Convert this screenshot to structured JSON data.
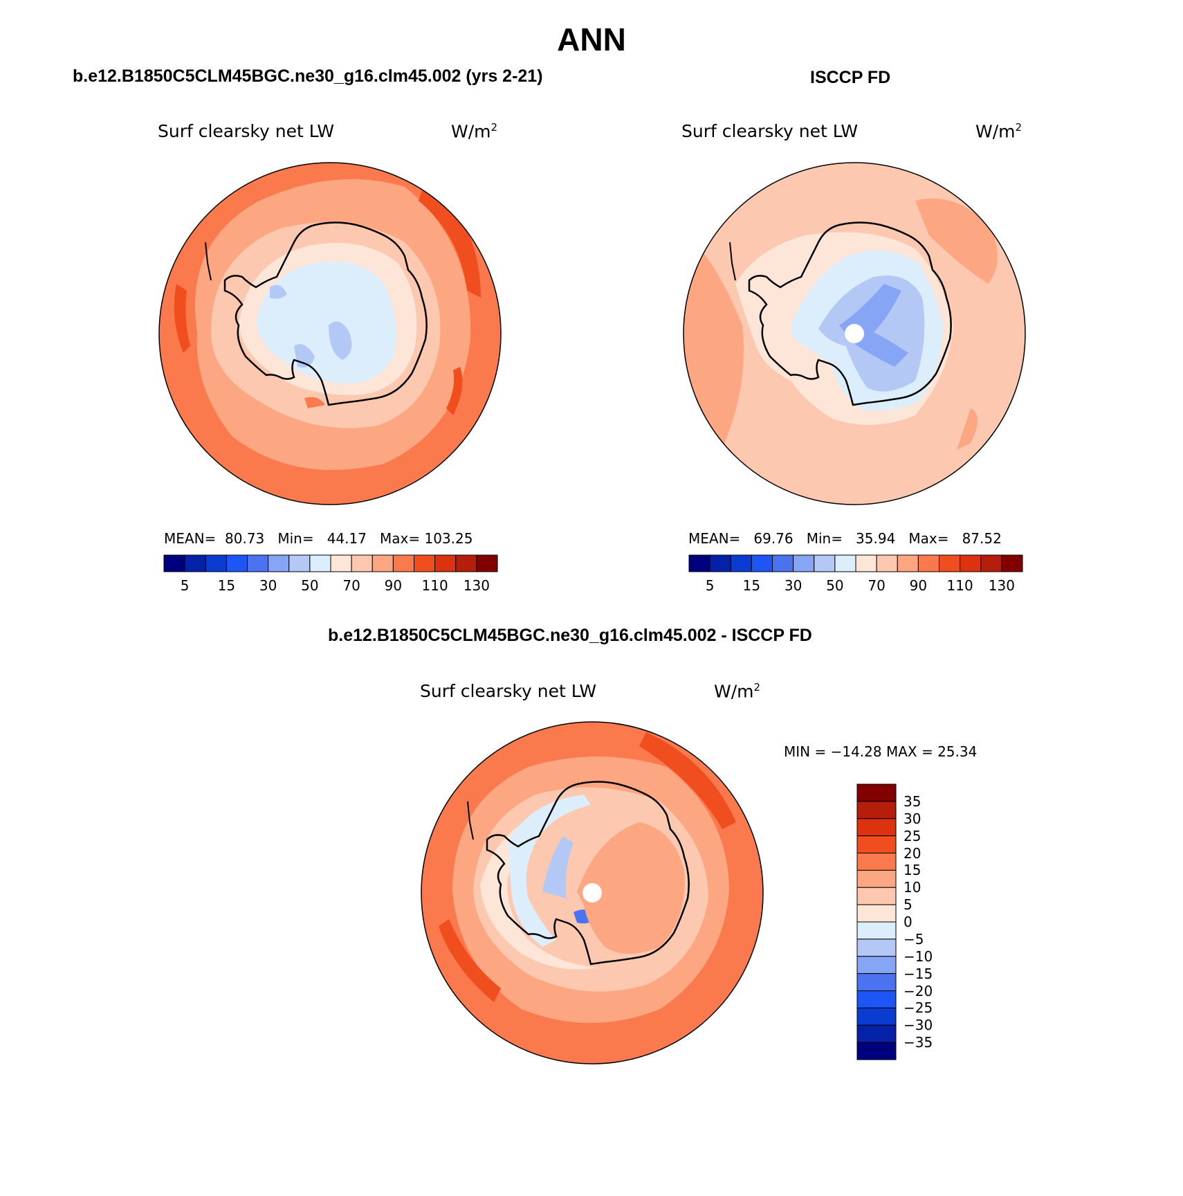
{
  "figure": {
    "title": "ANN"
  },
  "panels": [
    {
      "title": "b.e12.B1850C5CLM45BGC.ne30_g16.clm45.002 (yrs 2-21)",
      "variable": "Surf clearsky net LW",
      "units_base": "W/m",
      "units_exp": "2",
      "stats": {
        "mean_label": "MEAN=",
        "mean": "80.73",
        "min_label": "Min=",
        "min": "44.17",
        "max_label": "Max=",
        "max": "103.25"
      }
    },
    {
      "title": "ISCCP FD",
      "variable": "Surf clearsky net LW",
      "units_base": "W/m",
      "units_exp": "2",
      "stats": {
        "mean_label": "MEAN=",
        "mean": "69.76",
        "min_label": "Min=",
        "min": "35.94",
        "max_label": "Max=",
        "max": "87.52"
      }
    },
    {
      "title": "b.e12.B1850C5CLM45BGC.ne30_g16.clm45.002 - ISCCP FD",
      "variable": "Surf clearsky net LW",
      "units_base": "W/m",
      "units_exp": "2",
      "minmax_text": "MIN = −14.28 MAX =   25.34"
    }
  ],
  "abs_colorbar": {
    "colors": [
      "#00007f",
      "#0521a8",
      "#0a3cd2",
      "#1e55f5",
      "#4b73f0",
      "#87a5f5",
      "#b4c8f5",
      "#dceefc",
      "#fde6d7",
      "#fcc8b0",
      "#fca782",
      "#fa7a4e",
      "#f04e1e",
      "#dc3210",
      "#b41e0a",
      "#820000"
    ],
    "tick_labels": [
      "5",
      "15",
      "30",
      "50",
      "70",
      "90",
      "110",
      "130"
    ]
  },
  "diff_colorbar": {
    "colors": [
      "#00007f",
      "#0521a8",
      "#0a3cd2",
      "#1e55f5",
      "#4b73f0",
      "#87a5f5",
      "#b4c8f5",
      "#dceefc",
      "#fde6d7",
      "#fcc8b0",
      "#fca782",
      "#fa7a4e",
      "#f04e1e",
      "#dc3210",
      "#b41e0a",
      "#820000"
    ],
    "tick_labels": [
      "35",
      "30",
      "25",
      "20",
      "15",
      "10",
      "5",
      "0",
      "−5",
      "−10",
      "−15",
      "−20",
      "−25",
      "−30",
      "−35"
    ]
  }
}
